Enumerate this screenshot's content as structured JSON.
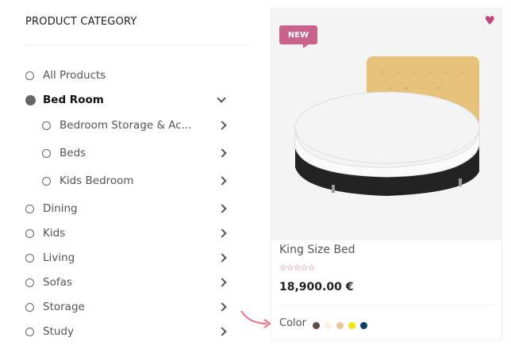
{
  "sidebar": {
    "title": "PRODUCT CATEGORY",
    "items": [
      {
        "label": "All Products",
        "level": 0,
        "chevron": "none",
        "active": false
      },
      {
        "label": "Bed Room",
        "level": 0,
        "chevron": "down",
        "active": true
      },
      {
        "label": "Bedroom Storage & Ac...",
        "level": 1,
        "chevron": "right",
        "active": false
      },
      {
        "label": "Beds",
        "level": 1,
        "chevron": "right",
        "active": false
      },
      {
        "label": "Kids Bedroom",
        "level": 1,
        "chevron": "right",
        "active": false
      },
      {
        "label": "Dining",
        "level": 0,
        "chevron": "right",
        "active": false
      },
      {
        "label": "Kids",
        "level": 0,
        "chevron": "right",
        "active": false
      },
      {
        "label": "Living",
        "level": 0,
        "chevron": "right",
        "active": false
      },
      {
        "label": "Sofas",
        "level": 0,
        "chevron": "right",
        "active": false
      },
      {
        "label": "Storage",
        "level": 0,
        "chevron": "right",
        "active": false
      },
      {
        "label": "Study",
        "level": 0,
        "chevron": "right",
        "active": false
      }
    ]
  },
  "product": {
    "badge": "NEW",
    "name": "King Size Bed",
    "rating": 0,
    "stars": "☆☆☆☆☆",
    "price": "18,900.00 €",
    "color_label": "Color",
    "colors": [
      "#5e4b4b",
      "#fbf3e2",
      "#e8c79c",
      "#f6e500",
      "#0d3e6b"
    ],
    "accent": "#c8628a",
    "wishlist_icon": "heart-icon"
  }
}
